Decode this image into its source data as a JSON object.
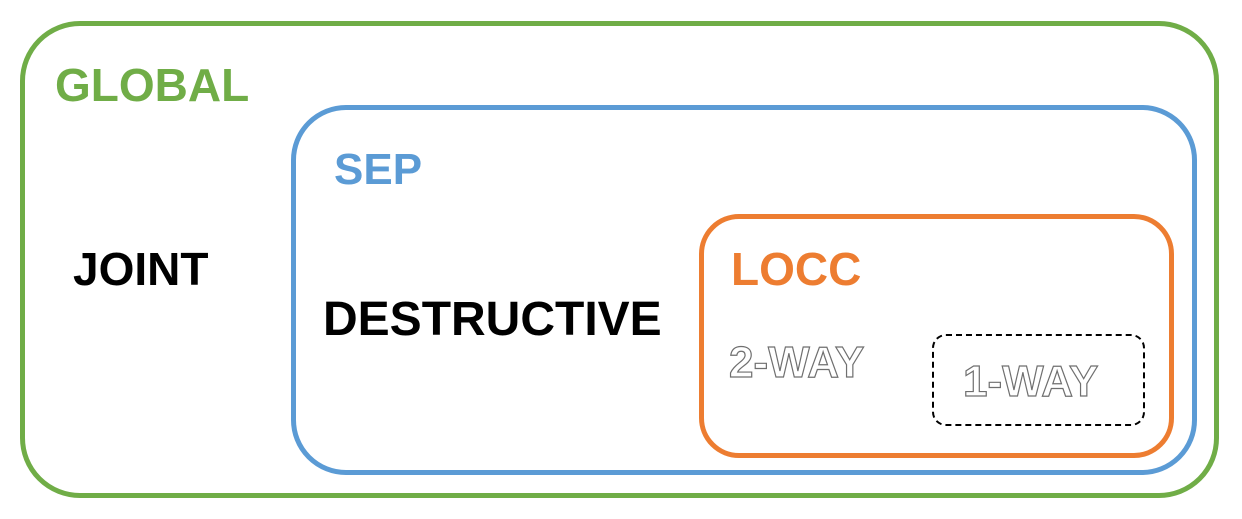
{
  "diagram": {
    "global": {
      "label": "GLOBAL",
      "color": "#70AD47"
    },
    "joint": {
      "label": "JOINT"
    },
    "sep": {
      "label": "SEP",
      "color": "#5B9BD5"
    },
    "destructive": {
      "label": "DESTRUCTIVE"
    },
    "locc": {
      "label": "LOCC",
      "color": "#ED7D31"
    },
    "two_way": {
      "label": "2-WAY"
    },
    "one_way": {
      "label": "1-WAY"
    }
  }
}
